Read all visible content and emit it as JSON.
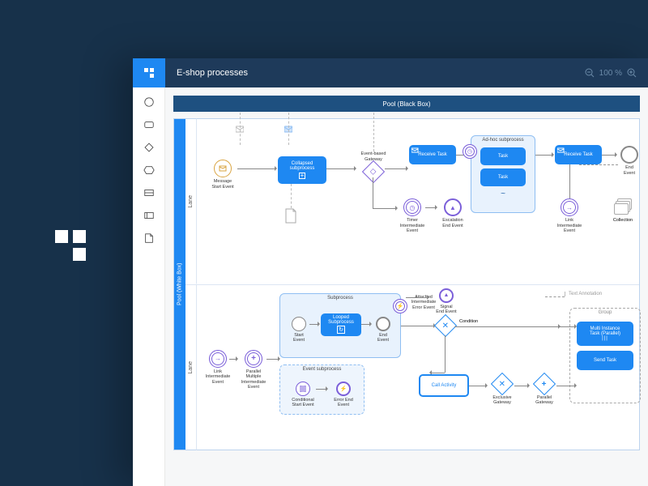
{
  "colors": {
    "page_bg": "#17314a",
    "titlebar_bg": "#1e3a5a",
    "brand_blue": "#1e88f2",
    "pool_header": "#1e5080",
    "lane_header": "#1e88f2",
    "subprocess_bg": "#e8f2fd",
    "subprocess_border": "#8fbef2",
    "purple": "#7b5fd9",
    "text_light": "#ffffff"
  },
  "typography": {
    "base_font": "Arial, sans-serif",
    "title_fontsize": 11,
    "label_fontsize": 6
  },
  "header": {
    "title": "E-shop processes",
    "zoom": "100 %"
  },
  "palette": {
    "tools": [
      "circle",
      "rounded-rect",
      "diamond",
      "hexagon",
      "rect-lines",
      "rect-split",
      "page"
    ]
  },
  "diagram": {
    "type": "bpmn-flowchart",
    "pool_black_label": "Pool (Black Box)",
    "pool_white_label": "Pool (White Box)",
    "lanes": [
      {
        "label": "Lane",
        "elements": {
          "msg_start": {
            "label": "Message\nStart Event"
          },
          "collapsed_sub": {
            "label": "Collapsed\nsubprocess"
          },
          "evt_gateway": {
            "label": "Event-based\nGateway"
          },
          "receive1": {
            "label": "Receive Task"
          },
          "adhoc": {
            "title": "Ad-hoc subprocess",
            "task1": "Task",
            "task2": "Task"
          },
          "receive2": {
            "label": "Receive Task"
          },
          "end_event": {
            "label": "End\nEvent"
          },
          "timer": {
            "label": "Timer\nIntermediate\nEvent"
          },
          "escalation": {
            "label": "Escalation\nEnd Event"
          },
          "link_out": {
            "label": "Link\nIntermediate\nEvent"
          },
          "collection": {
            "label": "Collection"
          }
        }
      },
      {
        "label": "Lane",
        "elements": {
          "link_in": {
            "label": "Link\nIntermediate\nEvent"
          },
          "parallel_multi": {
            "label": "Parallel\nMultiple\nIntermediate\nEvent"
          },
          "subprocess": {
            "title": "Subprocess",
            "start": "Start\nEvent",
            "looped": "Looped\nSubprocess",
            "end": "End\nEvent"
          },
          "event_sub": {
            "title": "Event subprocess",
            "cond_start": "Conditional\nStart Event",
            "err_end": "Error End\nEvent"
          },
          "attached_err": {
            "label": "Attached\nIntermediate\nError Event"
          },
          "signal_end": {
            "label": "Signal\nEnd Event"
          },
          "condition": {
            "label": "Condition"
          },
          "call_activity": {
            "label": "Call Activity"
          },
          "excl_gateway": {
            "label": "Exclusive\nGateway"
          },
          "para_gateway": {
            "label": "Parallel\nGateway"
          },
          "text_anno": {
            "label": "Text Annotation"
          },
          "group": {
            "title": "Group",
            "multi": "Multi Instance\nTask (Parallel)",
            "send": "Send Task"
          }
        }
      }
    ]
  }
}
